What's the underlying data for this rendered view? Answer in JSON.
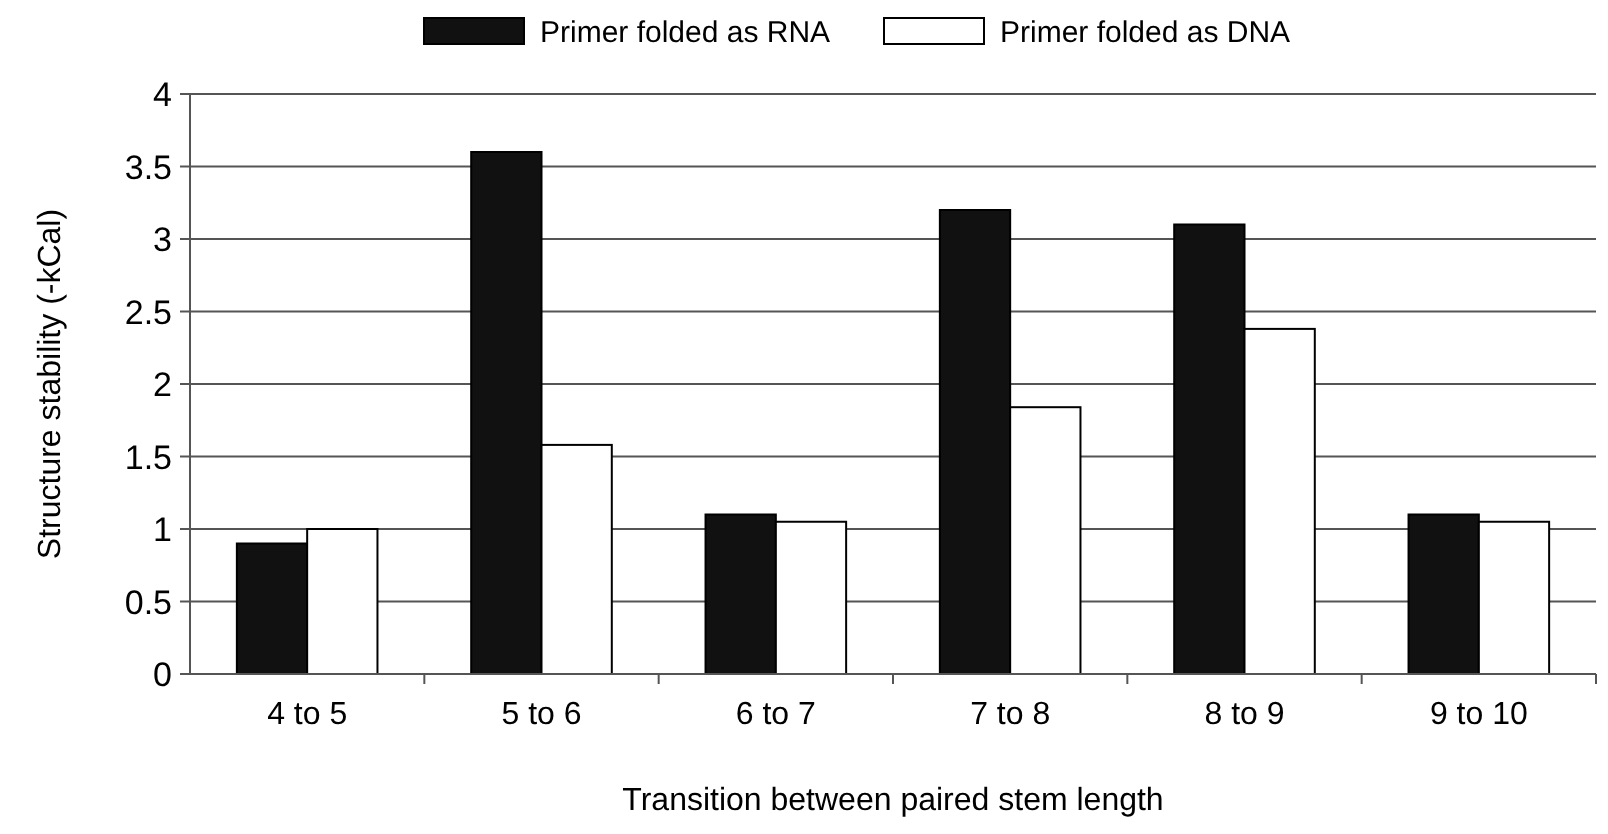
{
  "chart_data": {
    "type": "bar",
    "xlabel": "Transition between paired stem length",
    "ylabel": "Structure stability (-kCal)",
    "categories": [
      "4 to 5",
      "5 to 6",
      "6 to 7",
      "7 to 8",
      "8 to 9",
      "9 to 10"
    ],
    "series": [
      {
        "name": "Primer folded as RNA",
        "color": "#111111",
        "values": [
          0.9,
          3.6,
          1.1,
          3.2,
          3.1,
          1.1
        ]
      },
      {
        "name": "Primer folded as DNA",
        "color": "#ffffff",
        "values": [
          1.0,
          1.58,
          1.05,
          1.84,
          2.38,
          1.05
        ]
      }
    ],
    "ylim": [
      0,
      4
    ],
    "yticks": [
      0,
      0.5,
      1,
      1.5,
      2,
      2.5,
      3,
      3.5,
      4
    ],
    "grid": "y",
    "legend": "top"
  }
}
